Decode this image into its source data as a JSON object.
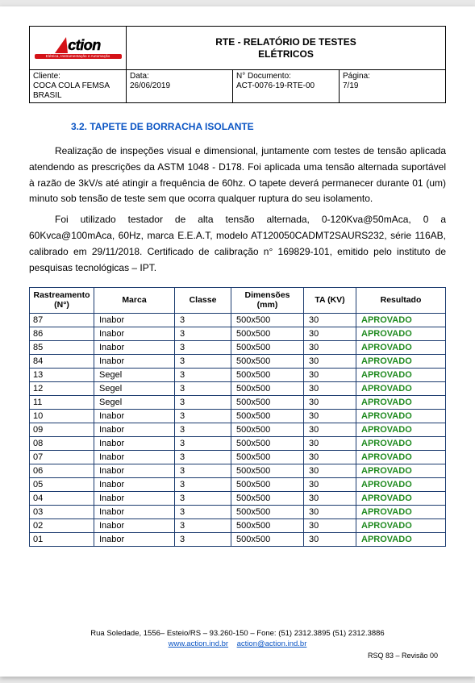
{
  "header": {
    "logo_brand": "ction",
    "logo_tag": "Elétrica, Instrumentação e Automação",
    "title_l1": "RTE - RELATÓRIO DE TESTES",
    "title_l2": "ELÉTRICOS",
    "cliente_lbl": "Cliente:",
    "cliente_val": "COCA COLA FEMSA BRASIL",
    "data_lbl": "Data:",
    "data_val": "26/06/2019",
    "doc_lbl": "N° Documento:",
    "doc_val": "ACT-0076-19-RTE-00",
    "pagina_lbl": "Página:",
    "pagina_val": "7/19"
  },
  "section_title": "3.2. TAPETE DE BORRACHA ISOLANTE",
  "para1": "Realização de inspeções visual e dimensional, juntamente com testes de tensão aplicada atendendo as prescrições da ASTM 1048 - D178. Foi aplicada uma tensão alternada suportável à razão de 3kV/s até atingir a frequência de 60hz. O tapete deverá permanecer durante 01 (um) minuto sob tensão de teste sem que ocorra qualquer ruptura do seu isolamento.",
  "para2": "Foi utilizado testador de alta tensão alternada, 0-120Kva@50mAca, 0 a 60Kvca@100mAca, 60Hz, marca E.E.A.T, modelo AT120050CADMT2SAURS232, série 116AB, calibrado em 29/11/2018. Certificado de calibração n° 169829-101, emitido pelo instituto de pesquisas tecnológicas – IPT.",
  "table": {
    "columns": [
      "Rastreamento (N°)",
      "Marca",
      "Classe",
      "Dimensões (mm)",
      "TA (KV)",
      "Resultado"
    ],
    "result_color": "#1f8a1f",
    "rows": [
      {
        "n": "87",
        "marca": "Inabor",
        "classe": "3",
        "dim": "500x500",
        "ta": "30",
        "res": "APROVADO"
      },
      {
        "n": "86",
        "marca": "Inabor",
        "classe": "3",
        "dim": "500x500",
        "ta": "30",
        "res": "APROVADO"
      },
      {
        "n": "85",
        "marca": "Inabor",
        "classe": "3",
        "dim": "500x500",
        "ta": "30",
        "res": "APROVADO"
      },
      {
        "n": "84",
        "marca": "Inabor",
        "classe": "3",
        "dim": "500x500",
        "ta": "30",
        "res": "APROVADO"
      },
      {
        "n": "13",
        "marca": "Segel",
        "classe": "3",
        "dim": "500x500",
        "ta": "30",
        "res": "APROVADO"
      },
      {
        "n": "12",
        "marca": "Segel",
        "classe": "3",
        "dim": "500x500",
        "ta": "30",
        "res": "APROVADO"
      },
      {
        "n": "11",
        "marca": "Segel",
        "classe": "3",
        "dim": "500x500",
        "ta": "30",
        "res": "APROVADO"
      },
      {
        "n": "10",
        "marca": "Inabor",
        "classe": "3",
        "dim": "500x500",
        "ta": "30",
        "res": "APROVADO"
      },
      {
        "n": "09",
        "marca": "Inabor",
        "classe": "3",
        "dim": "500x500",
        "ta": "30",
        "res": "APROVADO"
      },
      {
        "n": "08",
        "marca": "Inabor",
        "classe": "3",
        "dim": "500x500",
        "ta": "30",
        "res": "APROVADO"
      },
      {
        "n": "07",
        "marca": "Inabor",
        "classe": "3",
        "dim": "500x500",
        "ta": "30",
        "res": "APROVADO"
      },
      {
        "n": "06",
        "marca": "Inabor",
        "classe": "3",
        "dim": "500x500",
        "ta": "30",
        "res": "APROVADO"
      },
      {
        "n": "05",
        "marca": "Inabor",
        "classe": "3",
        "dim": "500x500",
        "ta": "30",
        "res": "APROVADO"
      },
      {
        "n": "04",
        "marca": "Inabor",
        "classe": "3",
        "dim": "500x500",
        "ta": "30",
        "res": "APROVADO"
      },
      {
        "n": "03",
        "marca": "Inabor",
        "classe": "3",
        "dim": "500x500",
        "ta": "30",
        "res": "APROVADO"
      },
      {
        "n": "02",
        "marca": "Inabor",
        "classe": "3",
        "dim": "500x500",
        "ta": "30",
        "res": "APROVADO"
      },
      {
        "n": "01",
        "marca": "Inabor",
        "classe": "3",
        "dim": "500x500",
        "ta": "30",
        "res": "APROVADO"
      }
    ]
  },
  "footer": {
    "line1": "Rua Soledade, 1556– Esteio/RS – 93.260-150 – Fone: (51) 2312.3895 (51) 2312.3886",
    "link1": "www.action.ind.br",
    "link2": "action@action.ind.br",
    "rev": "RSQ 83 – Revisão 00"
  }
}
